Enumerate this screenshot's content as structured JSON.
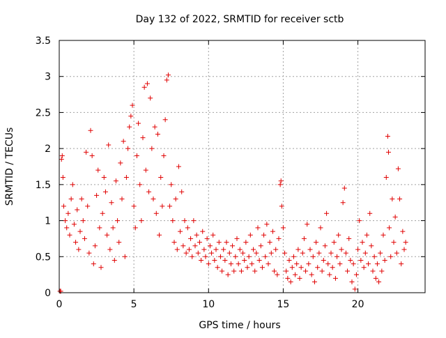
{
  "chart_data": {
    "type": "scatter",
    "title": "Day 132 of 2022, SRMTID for receiver sctb",
    "xlabel": "GPS time / hours",
    "ylabel": "SRMTID / TECUs",
    "xlim": [
      0,
      24.5
    ],
    "ylim": [
      0,
      3.5
    ],
    "xticks": [
      0,
      5,
      10,
      15,
      20
    ],
    "xtick_labels": [
      "0",
      "5",
      "10",
      "15",
      "20"
    ],
    "yticks": [
      0,
      0.5,
      1,
      1.5,
      2,
      2.5,
      3,
      3.5
    ],
    "ytick_labels": [
      "0",
      "0.5",
      "1",
      "1.5",
      "2",
      "2.5",
      "3",
      "3.5"
    ],
    "grid": true,
    "marker": "+",
    "marker_color": "#e00000",
    "series": [
      {
        "name": "SRMTID",
        "points": [
          [
            0.05,
            0.02
          ],
          [
            0.1,
            0.02
          ],
          [
            0.15,
            1.85
          ],
          [
            0.2,
            1.9
          ],
          [
            0.25,
            1.6
          ],
          [
            0.3,
            1.2
          ],
          [
            0.4,
            1.0
          ],
          [
            0.5,
            0.9
          ],
          [
            0.6,
            1.1
          ],
          [
            0.7,
            0.8
          ],
          [
            0.8,
            1.3
          ],
          [
            0.9,
            1.5
          ],
          [
            1.0,
            0.95
          ],
          [
            1.1,
            0.7
          ],
          [
            1.2,
            1.15
          ],
          [
            1.3,
            0.6
          ],
          [
            1.4,
            0.85
          ],
          [
            1.5,
            1.3
          ],
          [
            1.6,
            1.0
          ],
          [
            1.7,
            0.75
          ],
          [
            1.8,
            1.95
          ],
          [
            1.9,
            1.2
          ],
          [
            2.0,
            0.55
          ],
          [
            2.1,
            2.25
          ],
          [
            2.2,
            1.9
          ],
          [
            2.3,
            0.4
          ],
          [
            2.4,
            0.65
          ],
          [
            2.5,
            1.35
          ],
          [
            2.6,
            1.7
          ],
          [
            2.7,
            0.9
          ],
          [
            2.8,
            0.35
          ],
          [
            2.9,
            1.1
          ],
          [
            3.0,
            1.6
          ],
          [
            3.1,
            1.4
          ],
          [
            3.2,
            0.8
          ],
          [
            3.3,
            2.05
          ],
          [
            3.4,
            0.6
          ],
          [
            3.5,
            1.25
          ],
          [
            3.6,
            0.9
          ],
          [
            3.7,
            0.45
          ],
          [
            3.8,
            1.55
          ],
          [
            3.9,
            1.0
          ],
          [
            4.0,
            0.7
          ],
          [
            4.1,
            1.8
          ],
          [
            4.2,
            1.3
          ],
          [
            4.3,
            2.1
          ],
          [
            4.4,
            0.5
          ],
          [
            4.5,
            1.6
          ],
          [
            4.6,
            2.0
          ],
          [
            4.7,
            2.3
          ],
          [
            4.8,
            2.45
          ],
          [
            4.9,
            2.6
          ],
          [
            5.0,
            1.2
          ],
          [
            5.1,
            0.9
          ],
          [
            5.2,
            1.9
          ],
          [
            5.3,
            2.35
          ],
          [
            5.4,
            1.5
          ],
          [
            5.5,
            1.0
          ],
          [
            5.6,
            2.15
          ],
          [
            5.7,
            2.85
          ],
          [
            5.8,
            1.7
          ],
          [
            5.9,
            2.9
          ],
          [
            6.0,
            1.4
          ],
          [
            6.1,
            2.7
          ],
          [
            6.2,
            2.0
          ],
          [
            6.3,
            1.3
          ],
          [
            6.4,
            2.3
          ],
          [
            6.5,
            1.1
          ],
          [
            6.6,
            2.2
          ],
          [
            6.7,
            0.8
          ],
          [
            6.8,
            1.6
          ],
          [
            6.9,
            1.2
          ],
          [
            7.0,
            1.9
          ],
          [
            7.1,
            2.4
          ],
          [
            7.2,
            2.95
          ],
          [
            7.3,
            3.02
          ],
          [
            7.4,
            1.2
          ],
          [
            7.5,
            1.5
          ],
          [
            7.6,
            1.0
          ],
          [
            7.7,
            0.7
          ],
          [
            7.8,
            1.3
          ],
          [
            7.9,
            0.6
          ],
          [
            8.0,
            1.75
          ],
          [
            8.1,
            0.85
          ],
          [
            8.2,
            1.4
          ],
          [
            8.3,
            0.65
          ],
          [
            8.4,
            1.0
          ],
          [
            8.5,
            0.55
          ],
          [
            8.6,
            0.9
          ],
          [
            8.7,
            0.6
          ],
          [
            8.8,
            0.75
          ],
          [
            8.9,
            0.5
          ],
          [
            9.0,
            1.0
          ],
          [
            9.1,
            0.65
          ],
          [
            9.2,
            0.8
          ],
          [
            9.3,
            0.55
          ],
          [
            9.4,
            0.7
          ],
          [
            9.5,
            0.45
          ],
          [
            9.6,
            0.85
          ],
          [
            9.7,
            0.6
          ],
          [
            9.8,
            0.5
          ],
          [
            9.9,
            0.75
          ],
          [
            10.0,
            0.4
          ],
          [
            10.1,
            0.65
          ],
          [
            10.2,
            0.55
          ],
          [
            10.3,
            0.8
          ],
          [
            10.4,
            0.45
          ],
          [
            10.5,
            0.6
          ],
          [
            10.6,
            0.35
          ],
          [
            10.7,
            0.7
          ],
          [
            10.8,
            0.5
          ],
          [
            10.9,
            0.3
          ],
          [
            11.0,
            0.6
          ],
          [
            11.1,
            0.45
          ],
          [
            11.2,
            0.7
          ],
          [
            11.3,
            0.25
          ],
          [
            11.4,
            0.55
          ],
          [
            11.5,
            0.4
          ],
          [
            11.6,
            0.65
          ],
          [
            11.7,
            0.3
          ],
          [
            11.8,
            0.5
          ],
          [
            11.9,
            0.75
          ],
          [
            12.0,
            0.4
          ],
          [
            12.1,
            0.6
          ],
          [
            12.2,
            0.3
          ],
          [
            12.3,
            0.55
          ],
          [
            12.4,
            0.45
          ],
          [
            12.5,
            0.7
          ],
          [
            12.6,
            0.35
          ],
          [
            12.7,
            0.5
          ],
          [
            12.8,
            0.8
          ],
          [
            12.9,
            0.4
          ],
          [
            13.0,
            0.6
          ],
          [
            13.1,
            0.3
          ],
          [
            13.2,
            0.55
          ],
          [
            13.3,
            0.9
          ],
          [
            13.4,
            0.45
          ],
          [
            13.5,
            0.65
          ],
          [
            13.6,
            0.35
          ],
          [
            13.7,
            0.8
          ],
          [
            13.8,
            0.5
          ],
          [
            13.9,
            0.95
          ],
          [
            14.0,
            0.4
          ],
          [
            14.1,
            0.7
          ],
          [
            14.2,
            0.55
          ],
          [
            14.3,
            0.85
          ],
          [
            14.4,
            0.3
          ],
          [
            14.5,
            0.6
          ],
          [
            14.6,
            0.25
          ],
          [
            14.7,
            0.75
          ],
          [
            14.8,
            1.5
          ],
          [
            14.85,
            1.55
          ],
          [
            14.9,
            1.2
          ],
          [
            15.0,
            0.9
          ],
          [
            15.1,
            0.55
          ],
          [
            15.2,
            0.3
          ],
          [
            15.3,
            0.2
          ],
          [
            15.4,
            0.45
          ],
          [
            15.5,
            0.15
          ],
          [
            15.6,
            0.35
          ],
          [
            15.7,
            0.5
          ],
          [
            15.8,
            0.25
          ],
          [
            15.9,
            0.4
          ],
          [
            16.0,
            0.6
          ],
          [
            16.1,
            0.2
          ],
          [
            16.2,
            0.35
          ],
          [
            16.3,
            0.55
          ],
          [
            16.4,
            0.75
          ],
          [
            16.5,
            0.3
          ],
          [
            16.6,
            0.95
          ],
          [
            16.7,
            0.4
          ],
          [
            16.8,
            0.6
          ],
          [
            16.9,
            0.25
          ],
          [
            17.0,
            0.5
          ],
          [
            17.1,
            0.15
          ],
          [
            17.2,
            0.7
          ],
          [
            17.3,
            0.35
          ],
          [
            17.4,
            0.55
          ],
          [
            17.5,
            0.9
          ],
          [
            17.6,
            0.3
          ],
          [
            17.7,
            0.45
          ],
          [
            17.8,
            0.65
          ],
          [
            17.9,
            1.1
          ],
          [
            18.0,
            0.4
          ],
          [
            18.1,
            0.25
          ],
          [
            18.2,
            0.55
          ],
          [
            18.3,
            0.35
          ],
          [
            18.4,
            0.7
          ],
          [
            18.5,
            0.2
          ],
          [
            18.6,
            0.5
          ],
          [
            18.7,
            0.8
          ],
          [
            18.8,
            0.4
          ],
          [
            18.9,
            0.6
          ],
          [
            19.0,
            1.25
          ],
          [
            19.1,
            1.45
          ],
          [
            19.2,
            0.55
          ],
          [
            19.3,
            0.3
          ],
          [
            19.4,
            0.75
          ],
          [
            19.5,
            0.45
          ],
          [
            19.6,
            0.15
          ],
          [
            19.7,
            0.4
          ],
          [
            19.8,
            0.05
          ],
          [
            19.9,
            0.25
          ],
          [
            20.0,
            0.6
          ],
          [
            20.1,
            1.0
          ],
          [
            20.2,
            0.45
          ],
          [
            20.3,
            0.7
          ],
          [
            20.4,
            0.35
          ],
          [
            20.5,
            0.55
          ],
          [
            20.6,
            0.8
          ],
          [
            20.7,
            0.4
          ],
          [
            20.8,
            1.1
          ],
          [
            20.9,
            0.65
          ],
          [
            21.0,
            0.3
          ],
          [
            21.1,
            0.5
          ],
          [
            21.2,
            0.2
          ],
          [
            21.3,
            0.4
          ],
          [
            21.4,
            0.15
          ],
          [
            21.5,
            0.55
          ],
          [
            21.6,
            0.3
          ],
          [
            21.7,
            0.8
          ],
          [
            21.8,
            0.45
          ],
          [
            21.9,
            1.6
          ],
          [
            22.0,
            2.17
          ],
          [
            22.05,
            1.95
          ],
          [
            22.1,
            0.9
          ],
          [
            22.2,
            0.5
          ],
          [
            22.3,
            1.3
          ],
          [
            22.4,
            0.7
          ],
          [
            22.5,
            1.05
          ],
          [
            22.6,
            0.55
          ],
          [
            22.7,
            1.72
          ],
          [
            22.8,
            1.3
          ],
          [
            22.9,
            0.4
          ],
          [
            23.0,
            0.85
          ],
          [
            23.1,
            0.6
          ],
          [
            23.2,
            0.7
          ]
        ]
      }
    ]
  }
}
